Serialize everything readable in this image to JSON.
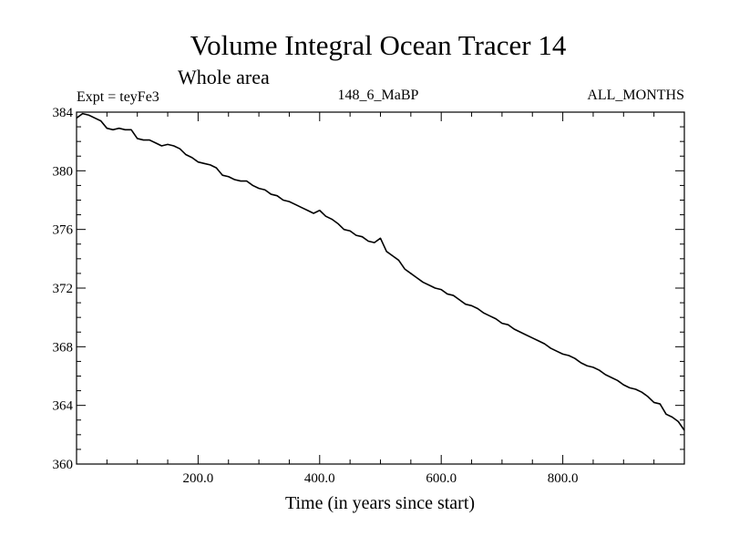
{
  "chart_data": {
    "type": "line",
    "title": "Volume Integral Ocean Tracer 14",
    "subtitle": "Whole area",
    "left_label": "Expt = teyFe3",
    "center_label": "148_6_MaBP",
    "right_label": "ALL_MONTHS",
    "xlabel": "Time (in years since start)",
    "ylabel": "",
    "xlim": [
      0,
      1000
    ],
    "ylim": [
      360,
      384
    ],
    "x_ticks": [
      200,
      400,
      600,
      800
    ],
    "x_tick_labels": [
      "200.0",
      "400.0",
      "600.0",
      "800.0"
    ],
    "y_ticks": [
      360,
      364,
      368,
      372,
      376,
      380,
      384
    ],
    "y_tick_labels": [
      "360",
      "364",
      "368",
      "372",
      "376",
      "380",
      "384"
    ],
    "grid": false,
    "series": [
      {
        "name": "Ocean Tracer 14",
        "x": [
          0,
          10,
          20,
          30,
          40,
          50,
          60,
          70,
          80,
          90,
          100,
          110,
          120,
          130,
          140,
          150,
          160,
          170,
          180,
          190,
          200,
          210,
          220,
          230,
          240,
          250,
          260,
          270,
          280,
          290,
          300,
          310,
          320,
          330,
          340,
          350,
          360,
          370,
          380,
          390,
          400,
          410,
          420,
          430,
          440,
          450,
          460,
          470,
          480,
          490,
          500,
          510,
          520,
          530,
          540,
          550,
          560,
          570,
          580,
          590,
          600,
          610,
          620,
          630,
          640,
          650,
          660,
          670,
          680,
          690,
          700,
          710,
          720,
          730,
          740,
          750,
          760,
          770,
          780,
          790,
          800,
          810,
          820,
          830,
          840,
          850,
          860,
          870,
          880,
          890,
          900,
          910,
          920,
          930,
          940,
          950,
          960,
          970,
          980,
          990,
          1000
        ],
        "y": [
          383.6,
          383.9,
          383.8,
          383.6,
          383.4,
          382.9,
          382.8,
          382.9,
          382.8,
          382.8,
          382.2,
          382.1,
          382.1,
          381.9,
          381.7,
          381.8,
          381.7,
          381.5,
          381.1,
          380.9,
          380.6,
          380.5,
          380.4,
          380.2,
          379.7,
          379.6,
          379.4,
          379.3,
          379.3,
          379.0,
          378.8,
          378.7,
          378.4,
          378.3,
          378.0,
          377.9,
          377.7,
          377.5,
          377.3,
          377.1,
          377.3,
          376.9,
          376.7,
          376.4,
          376.0,
          375.9,
          375.6,
          375.5,
          375.2,
          375.1,
          375.4,
          374.5,
          374.2,
          373.9,
          373.3,
          373.0,
          372.7,
          372.4,
          372.2,
          372.0,
          371.9,
          371.6,
          371.5,
          371.2,
          370.9,
          370.8,
          370.6,
          370.3,
          370.1,
          369.9,
          369.6,
          369.5,
          369.2,
          369.0,
          368.8,
          368.6,
          368.4,
          368.2,
          367.9,
          367.7,
          367.5,
          367.4,
          367.2,
          366.9,
          366.7,
          366.6,
          366.4,
          366.1,
          365.9,
          365.7,
          365.4,
          365.2,
          365.1,
          364.9,
          364.6,
          364.2,
          364.1,
          363.4,
          363.2,
          362.9,
          362.3
        ]
      }
    ]
  }
}
